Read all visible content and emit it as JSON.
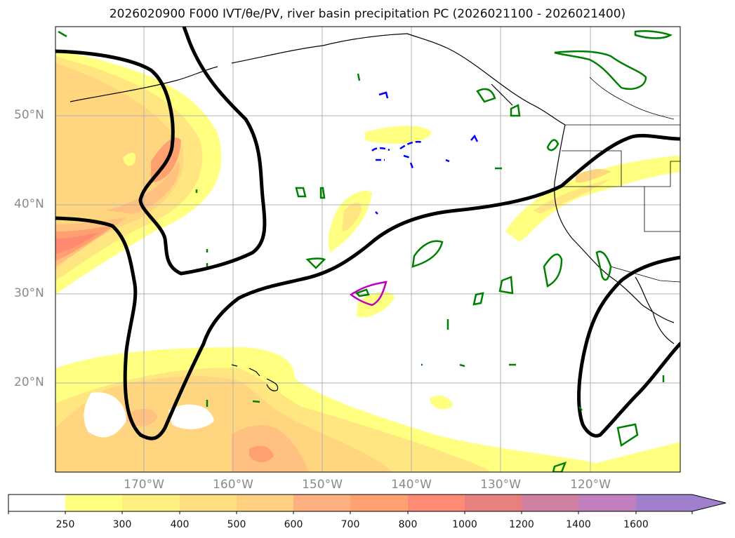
{
  "title": "2026020900 F000 IVT/θe/PV, river basin precipitation PC (2026021100 - 2026021400)",
  "map": {
    "lat_labels": [
      "50°N",
      "40°N",
      "30°N",
      "20°N"
    ],
    "lon_labels": [
      "170°W",
      "160°W",
      "150°W",
      "140°W",
      "130°W",
      "120°W"
    ],
    "colors": {
      "ivt_250": "#ffff80",
      "ivt_300": "#ffe680",
      "ivt_400": "#ffd580",
      "ivt_500": "#ffc080",
      "ivt_600": "#ffa070",
      "ivt_700": "#ff8a70",
      "contour": "#000000",
      "pv_green": "#008000",
      "pv_blue": "#0000ff",
      "pv_magenta": "#c000c0"
    }
  },
  "colorbar": {
    "ticks": [
      "250",
      "300",
      "400",
      "500",
      "600",
      "700",
      "800",
      "1000",
      "1200",
      "1400",
      "1600"
    ],
    "colors": [
      "#ffffff",
      "#ffff80",
      "#ffee80",
      "#ffdf80",
      "#ffd080",
      "#ffb080",
      "#ffa070",
      "#ff8a75",
      "#e88080",
      "#d080a0",
      "#c080c0",
      "#a080cc"
    ]
  }
}
